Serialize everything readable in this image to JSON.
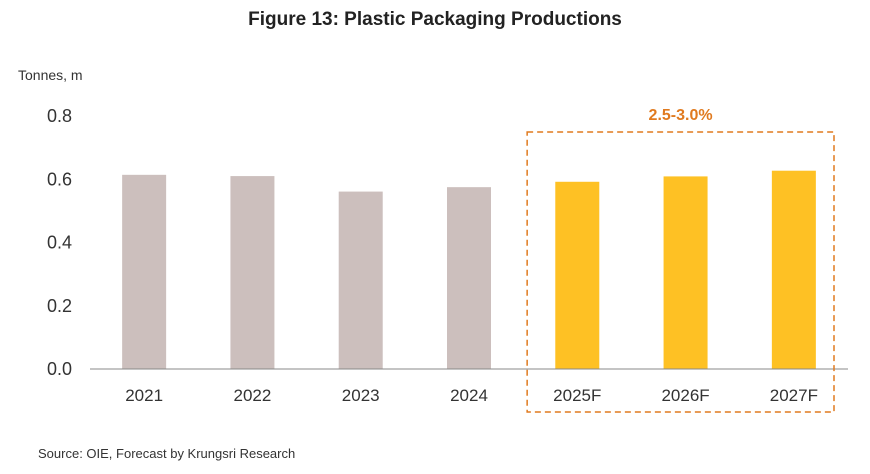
{
  "chart_data": {
    "type": "bar",
    "title": "Figure 13: Plastic Packaging Productions",
    "ylabel": "Tonnes, m",
    "xlabel": "",
    "ylim": [
      0,
      0.8
    ],
    "yticks": [
      "0.0",
      "0.2",
      "0.4",
      "0.6",
      "0.8"
    ],
    "categories": [
      "2021",
      "2022",
      "2023",
      "2024",
      "2025F",
      "2026F",
      "2027F"
    ],
    "values": [
      0.614,
      0.61,
      0.561,
      0.575,
      0.592,
      0.609,
      0.627
    ],
    "forecast_from_index": 4,
    "forecast_annotation": "2.5-3.0%",
    "source": "Source: OIE, Forecast by Krungsri Research",
    "grid": false,
    "colors": {
      "actual": "#CCBFBD",
      "forecast": "#FEC124",
      "annotation": "#E07A1F",
      "axis": "#888888"
    }
  }
}
